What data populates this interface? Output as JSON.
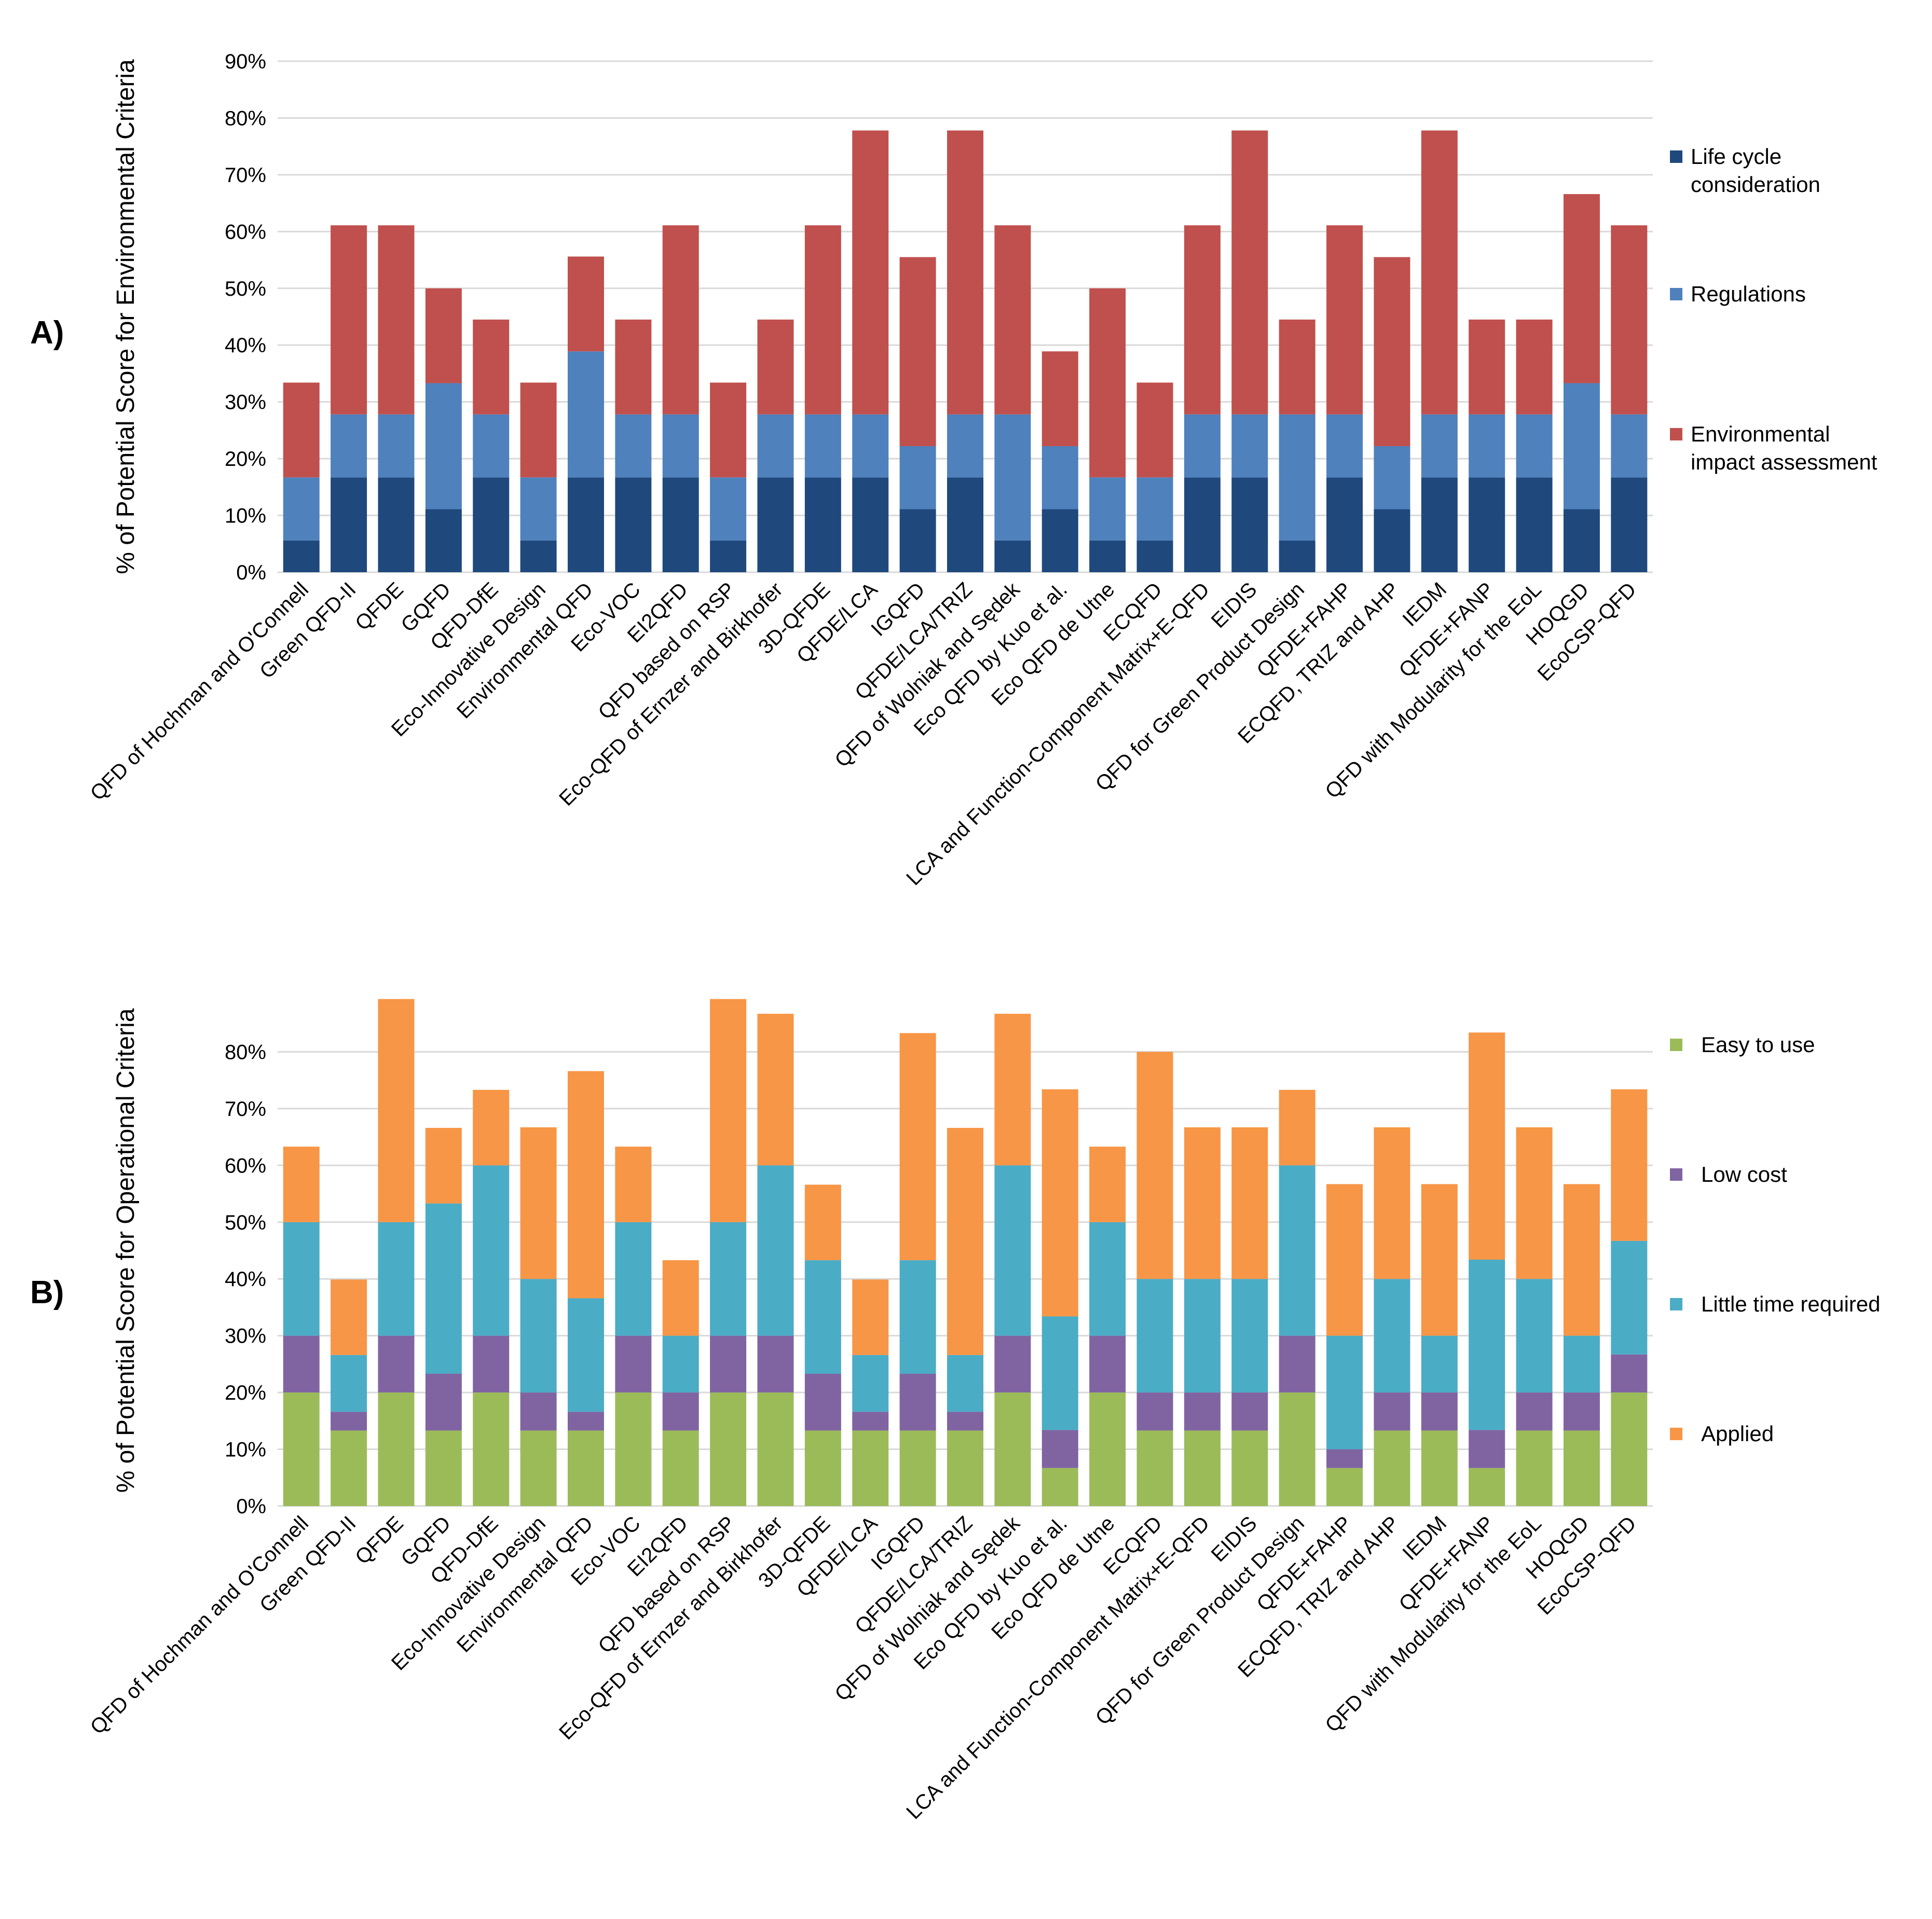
{
  "chart_data": [
    {
      "panel_label": "A)",
      "type": "bar",
      "stacked": true,
      "title": "",
      "xlabel": "",
      "ylabel": "% of Potential Score for Environmental Criteria",
      "ylim": [
        0,
        90
      ],
      "yticks": [
        "0%",
        "10%",
        "20%",
        "30%",
        "40%",
        "50%",
        "60%",
        "70%",
        "80%",
        "90%"
      ],
      "grid": true,
      "legend_position": "right",
      "categories": [
        "QFD of Hochman and O'Connell",
        "Green QFD-II",
        "QFDE",
        "GQFD",
        "QFD-DfE",
        "Eco-Innovative Design",
        "Environmental QFD",
        "Eco-VOC",
        "EI2QFD",
        "QFD based on RSP",
        "Eco-QFD of Ernzer and Birkhofer",
        "3D-QFDE",
        "QFDE/LCA",
        "IGQFD",
        "QFDE/LCA/TRIZ",
        "QFD of Wolniak and Sędek",
        "Eco QFD by Kuo et al.",
        "Eco QFD de Utne",
        "ECQFD",
        "LCA and Function-Component Matrix+E-QFD",
        "EIDIS",
        "QFD for Green Product Design",
        "QFDE+FAHP",
        "ECQFD, TRIZ and AHP",
        "IEDM",
        "QFDE+FANP",
        "QFD with Modularity for the EoL",
        "HOQGD",
        "EcoCSP-QFD"
      ],
      "series": [
        {
          "name": "Life cycle consideration",
          "color": "#1f497d",
          "values": [
            5.6,
            16.7,
            16.7,
            11.1,
            16.7,
            5.6,
            16.7,
            16.7,
            16.7,
            5.6,
            16.7,
            16.7,
            16.7,
            11.1,
            16.7,
            5.6,
            11.1,
            5.6,
            5.6,
            16.7,
            16.7,
            5.6,
            16.7,
            11.1,
            16.7,
            16.7,
            16.7,
            11.1,
            16.7
          ]
        },
        {
          "name": "Regulations",
          "color": "#4f81bd",
          "values": [
            11.1,
            11.1,
            11.1,
            22.2,
            11.1,
            11.1,
            22.2,
            11.1,
            11.1,
            11.1,
            11.1,
            11.1,
            11.1,
            11.1,
            11.1,
            22.2,
            11.1,
            11.1,
            11.1,
            11.1,
            11.1,
            22.2,
            11.1,
            11.1,
            11.1,
            11.1,
            11.1,
            22.2,
            11.1
          ]
        },
        {
          "name": "Environmental impact assessment",
          "color": "#c0504d",
          "values": [
            16.7,
            33.3,
            33.3,
            16.7,
            16.7,
            16.7,
            16.7,
            16.7,
            33.3,
            16.7,
            16.7,
            33.3,
            50.0,
            33.3,
            50.0,
            33.3,
            16.7,
            33.3,
            16.7,
            33.3,
            50.0,
            16.7,
            33.3,
            33.3,
            50.0,
            16.7,
            16.7,
            33.3,
            33.3
          ]
        }
      ],
      "legend": [
        {
          "line1": "Life cycle",
          "line2": "consideration"
        },
        {
          "line1": "Regulations",
          "line2": ""
        },
        {
          "line1": "Environmental",
          "line2": "impact assessment"
        }
      ]
    },
    {
      "panel_label": "B)",
      "type": "bar",
      "stacked": true,
      "title": "",
      "xlabel": "",
      "ylabel": "% of Potential Score for Operational Criteria",
      "ylim": [
        0,
        90
      ],
      "yticks": [
        "0%",
        "10%",
        "20%",
        "30%",
        "40%",
        "50%",
        "60%",
        "70%",
        "80%"
      ],
      "grid": true,
      "legend_position": "right",
      "categories": [
        "QFD of Hochman and O'Connell",
        "Green QFD-II",
        "QFDE",
        "GQFD",
        "QFD-DfE",
        "Eco-Innovative Design",
        "Environmental QFD",
        "Eco-VOC",
        "EI2QFD",
        "QFD based on RSP",
        "Eco-QFD of Ernzer and Birkhofer",
        "3D-QFDE",
        "QFDE/LCA",
        "IGQFD",
        "QFDE/LCA/TRIZ",
        "QFD of Wolniak and Sędek",
        "Eco QFD by Kuo et al.",
        "Eco QFD de Utne",
        "ECQFD",
        "LCA and Function-Component Matrix+E-QFD",
        "EIDIS",
        "QFD for Green Product Design",
        "QFDE+FAHP",
        "ECQFD, TRIZ and AHP",
        "IEDM",
        "QFDE+FANP",
        "QFD with Modularity for the EoL",
        "HOQGD",
        "EcoCSP-QFD"
      ],
      "series": [
        {
          "name": "Easy to use",
          "color": "#9bbb59",
          "values": [
            20.0,
            13.3,
            20.0,
            13.3,
            20.0,
            13.3,
            13.3,
            20.0,
            13.3,
            20.0,
            20.0,
            13.3,
            13.3,
            13.3,
            13.3,
            20.0,
            6.7,
            20.0,
            13.3,
            13.3,
            13.3,
            20.0,
            6.7,
            13.3,
            13.3,
            6.7,
            13.3,
            13.3,
            20.0
          ]
        },
        {
          "name": "Low cost",
          "color": "#8064a2",
          "values": [
            10.0,
            3.3,
            10.0,
            10.0,
            10.0,
            6.7,
            3.3,
            10.0,
            6.7,
            10.0,
            10.0,
            10.0,
            3.3,
            10.0,
            3.3,
            10.0,
            6.7,
            10.0,
            6.7,
            6.7,
            6.7,
            10.0,
            3.3,
            6.7,
            6.7,
            6.7,
            6.7,
            6.7,
            6.7
          ]
        },
        {
          "name": "Little time required",
          "color": "#4bacc6",
          "values": [
            20.0,
            10.0,
            20.0,
            30.0,
            30.0,
            20.0,
            20.0,
            20.0,
            10.0,
            20.0,
            30.0,
            20.0,
            10.0,
            20.0,
            10.0,
            30.0,
            20.0,
            20.0,
            20.0,
            20.0,
            20.0,
            30.0,
            20.0,
            20.0,
            10.0,
            30.0,
            20.0,
            10.0,
            20.0
          ]
        },
        {
          "name": "Applied",
          "color": "#f79646",
          "values": [
            13.3,
            13.3,
            39.3,
            13.3,
            13.3,
            26.7,
            40.0,
            13.3,
            13.3,
            39.3,
            26.7,
            13.3,
            13.3,
            40.0,
            40.0,
            26.7,
            40.0,
            13.3,
            40.0,
            26.7,
            26.7,
            13.3,
            26.7,
            26.7,
            26.7,
            40.0,
            26.7,
            26.7,
            26.7
          ]
        }
      ],
      "legend": [
        {
          "line1": "Easy to use",
          "line2": ""
        },
        {
          "line1": "Low cost",
          "line2": ""
        },
        {
          "line1": "Little time required",
          "line2": ""
        },
        {
          "line1": "Applied",
          "line2": ""
        }
      ]
    }
  ]
}
